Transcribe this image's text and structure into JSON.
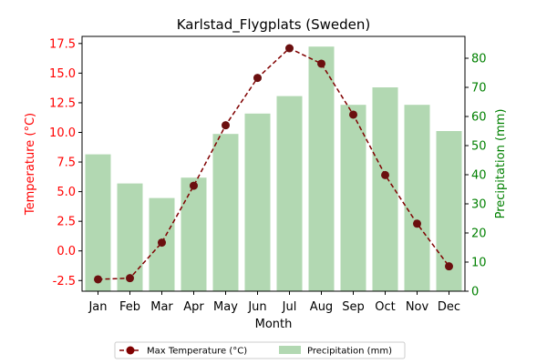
{
  "chart_data": {
    "type": "bar+line",
    "title": "Karlstad_Flygplats (Sweden)",
    "xlabel": "Month",
    "categories": [
      "Jan",
      "Feb",
      "Mar",
      "Apr",
      "May",
      "Jun",
      "Jul",
      "Aug",
      "Sep",
      "Oct",
      "Nov",
      "Dec"
    ],
    "left_axis": {
      "label": "Temperature (°C)",
      "color": "#ff0000",
      "ylim": [
        -3.4,
        18.1
      ],
      "ticks": [
        "-2.5",
        "0.0",
        "2.5",
        "5.0",
        "7.5",
        "10.0",
        "12.5",
        "15.0",
        "17.5"
      ]
    },
    "right_axis": {
      "label": "Precipitation (mm)",
      "color": "#008000",
      "ylim": [
        0,
        87.5
      ],
      "ticks": [
        "0",
        "10",
        "20",
        "30",
        "40",
        "50",
        "60",
        "70",
        "80"
      ]
    },
    "series": [
      {
        "name": "Max Temperature (°C)",
        "kind": "line",
        "axis": "left",
        "color": "#800000",
        "values": [
          -2.4,
          -2.3,
          0.7,
          5.5,
          10.6,
          14.6,
          17.1,
          15.8,
          11.5,
          6.4,
          2.3,
          -1.3
        ]
      },
      {
        "name": "Precipitation (mm)",
        "kind": "bar",
        "axis": "right",
        "color": "#b2d8b2",
        "values": [
          47,
          37,
          32,
          39,
          54,
          61,
          67,
          84,
          64,
          70,
          64,
          55
        ]
      }
    ],
    "legend_position": "bottom-center",
    "grid": false
  }
}
